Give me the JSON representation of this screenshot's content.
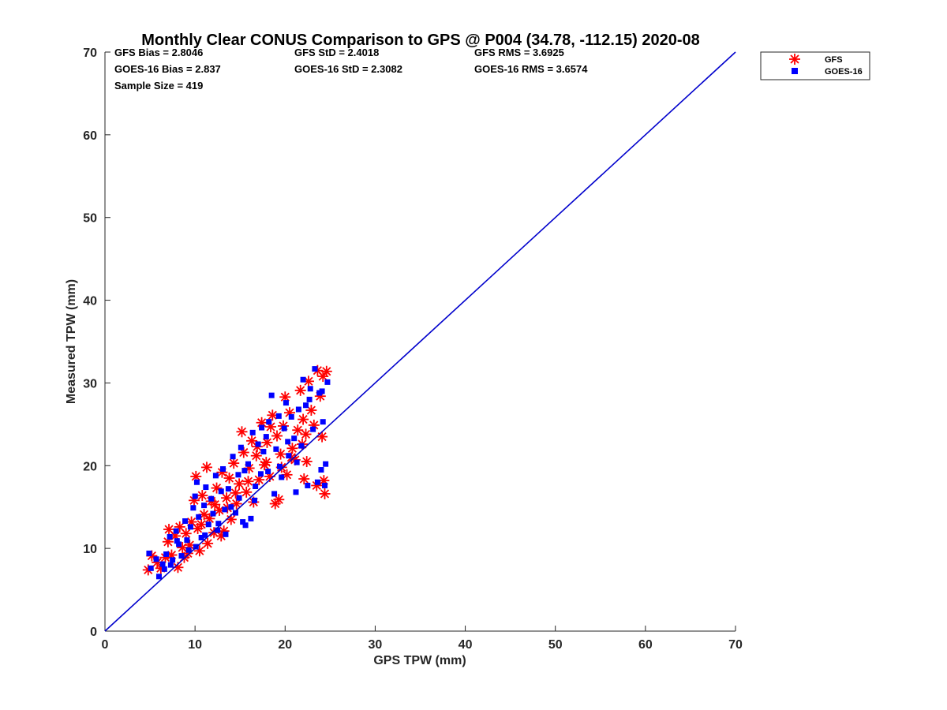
{
  "chart_data": {
    "type": "scatter",
    "title": "Monthly Clear CONUS Comparison to GPS @ P004 (34.78, -112.15) 2020-08",
    "xlabel": "GPS TPW (mm)",
    "ylabel": "Measured TPW (mm)",
    "xlim": [
      0,
      70
    ],
    "ylim": [
      0,
      70
    ],
    "xticks": [
      "0",
      "10",
      "20",
      "30",
      "40",
      "50",
      "60",
      "70"
    ],
    "yticks": [
      "0",
      "10",
      "20",
      "30",
      "40",
      "50",
      "60",
      "70"
    ],
    "grid": false,
    "legend_position": "top-right",
    "stats": [
      "GFS Bias = 2.8046",
      "GFS StD = 2.4018",
      "GFS RMS = 3.6925",
      "GOES-16 Bias = 2.837",
      "GOES-16 StD = 2.3082",
      "GOES-16 RMS = 3.6574",
      "Sample Size = 419"
    ],
    "reference_line": {
      "x": [
        0,
        70
      ],
      "y": [
        0,
        70
      ],
      "color": "#0000cc"
    },
    "series": [
      {
        "name": "GFS",
        "marker": "asterisk",
        "color": "#ff0000",
        "points": [
          [
            4.8,
            7.4
          ],
          [
            5.2,
            9.1
          ],
          [
            5.8,
            8.3
          ],
          [
            6.2,
            7.6
          ],
          [
            6.7,
            8.9
          ],
          [
            7.0,
            10.8
          ],
          [
            7.1,
            12.3
          ],
          [
            7.4,
            9.2
          ],
          [
            7.8,
            11.5
          ],
          [
            8.1,
            7.7
          ],
          [
            8.3,
            12.6
          ],
          [
            8.6,
            10.1
          ],
          [
            9.0,
            11.8
          ],
          [
            9.2,
            9.4
          ],
          [
            9.6,
            13.2
          ],
          [
            9.9,
            15.8
          ],
          [
            10.1,
            18.7
          ],
          [
            10.3,
            12.4
          ],
          [
            10.5,
            9.7
          ],
          [
            10.8,
            16.4
          ],
          [
            11.0,
            14.1
          ],
          [
            11.3,
            19.8
          ],
          [
            11.6,
            13.6
          ],
          [
            11.8,
            15.7
          ],
          [
            12.1,
            11.9
          ],
          [
            12.4,
            17.3
          ],
          [
            12.7,
            14.6
          ],
          [
            13.0,
            19.2
          ],
          [
            13.2,
            12.1
          ],
          [
            13.5,
            16.1
          ],
          [
            13.8,
            18.5
          ],
          [
            14.0,
            13.5
          ],
          [
            14.3,
            20.3
          ],
          [
            14.6,
            15.4
          ],
          [
            14.9,
            17.8
          ],
          [
            15.2,
            24.1
          ],
          [
            15.4,
            21.6
          ],
          [
            15.7,
            16.8
          ],
          [
            16.0,
            19.7
          ],
          [
            16.3,
            23.0
          ],
          [
            16.5,
            15.6
          ],
          [
            16.8,
            21.2
          ],
          [
            17.1,
            18.3
          ],
          [
            17.4,
            25.2
          ],
          [
            17.7,
            20.1
          ],
          [
            18.0,
            22.8
          ],
          [
            18.3,
            18.7
          ],
          [
            18.6,
            26.1
          ],
          [
            18.9,
            15.4
          ],
          [
            19.1,
            23.6
          ],
          [
            19.3,
            15.9
          ],
          [
            19.5,
            21.4
          ],
          [
            19.8,
            24.8
          ],
          [
            20.0,
            28.3
          ],
          [
            20.2,
            18.9
          ],
          [
            20.5,
            26.4
          ],
          [
            20.8,
            22.1
          ],
          [
            21.1,
            20.7
          ],
          [
            21.4,
            24.3
          ],
          [
            21.7,
            29.1
          ],
          [
            22.0,
            25.6
          ],
          [
            22.1,
            18.4
          ],
          [
            22.3,
            23.8
          ],
          [
            22.6,
            30.2
          ],
          [
            22.9,
            26.7
          ],
          [
            23.2,
            24.9
          ],
          [
            23.5,
            17.6
          ],
          [
            23.6,
            31.5
          ],
          [
            23.9,
            28.4
          ],
          [
            24.1,
            23.5
          ],
          [
            24.3,
            18.2
          ],
          [
            24.4,
            16.6
          ],
          [
            24.6,
            31.4
          ],
          [
            24.2,
            30.8
          ],
          [
            22.4,
            20.5
          ],
          [
            21.9,
            22.6
          ],
          [
            20.7,
            21.0
          ],
          [
            19.6,
            19.8
          ],
          [
            17.9,
            20.4
          ],
          [
            12.9,
            11.5
          ],
          [
            11.4,
            10.6
          ],
          [
            10.7,
            12.9
          ],
          [
            9.4,
            10.4
          ],
          [
            8.8,
            8.9
          ],
          [
            15.9,
            18.1
          ],
          [
            14.5,
            16.7
          ],
          [
            16.9,
            22.3
          ],
          [
            13.6,
            14.9
          ],
          [
            12.2,
            15.3
          ],
          [
            18.4,
            24.7
          ]
        ]
      },
      {
        "name": "GOES-16",
        "marker": "square",
        "color": "#0000ff",
        "points": [
          [
            4.9,
            9.4
          ],
          [
            5.1,
            7.6
          ],
          [
            5.7,
            8.7
          ],
          [
            6.0,
            6.6
          ],
          [
            6.4,
            8.1
          ],
          [
            6.8,
            9.3
          ],
          [
            7.2,
            11.4
          ],
          [
            7.5,
            8.6
          ],
          [
            7.9,
            12.1
          ],
          [
            8.2,
            10.5
          ],
          [
            8.5,
            9.1
          ],
          [
            8.9,
            13.3
          ],
          [
            9.1,
            11.0
          ],
          [
            9.5,
            12.6
          ],
          [
            9.8,
            14.9
          ],
          [
            10.0,
            16.3
          ],
          [
            10.2,
            18.0
          ],
          [
            10.4,
            13.8
          ],
          [
            10.7,
            11.3
          ],
          [
            11.0,
            15.2
          ],
          [
            11.2,
            17.4
          ],
          [
            11.5,
            12.9
          ],
          [
            11.8,
            16.0
          ],
          [
            12.0,
            14.2
          ],
          [
            12.3,
            18.8
          ],
          [
            12.6,
            13.0
          ],
          [
            12.9,
            16.9
          ],
          [
            13.1,
            19.6
          ],
          [
            13.4,
            11.7
          ],
          [
            13.7,
            17.2
          ],
          [
            14.0,
            15.0
          ],
          [
            14.2,
            21.1
          ],
          [
            14.5,
            14.3
          ],
          [
            14.8,
            18.9
          ],
          [
            15.1,
            22.2
          ],
          [
            15.3,
            13.2
          ],
          [
            15.6,
            12.8
          ],
          [
            15.9,
            20.2
          ],
          [
            16.2,
            13.6
          ],
          [
            16.4,
            24.0
          ],
          [
            16.7,
            17.5
          ],
          [
            17.0,
            22.6
          ],
          [
            17.3,
            19.0
          ],
          [
            17.6,
            21.7
          ],
          [
            17.9,
            23.5
          ],
          [
            18.2,
            25.3
          ],
          [
            18.5,
            28.5
          ],
          [
            18.8,
            16.6
          ],
          [
            19.0,
            22.0
          ],
          [
            19.3,
            26.0
          ],
          [
            19.6,
            18.6
          ],
          [
            19.9,
            24.5
          ],
          [
            20.1,
            27.6
          ],
          [
            20.4,
            21.2
          ],
          [
            20.7,
            25.9
          ],
          [
            21.0,
            23.3
          ],
          [
            21.2,
            16.8
          ],
          [
            21.5,
            26.8
          ],
          [
            21.8,
            22.4
          ],
          [
            22.0,
            30.4
          ],
          [
            22.3,
            27.3
          ],
          [
            22.5,
            17.6
          ],
          [
            22.8,
            29.3
          ],
          [
            23.1,
            24.4
          ],
          [
            23.3,
            31.7
          ],
          [
            23.6,
            18.0
          ],
          [
            23.8,
            28.8
          ],
          [
            24.0,
            19.5
          ],
          [
            24.2,
            25.3
          ],
          [
            24.4,
            17.6
          ],
          [
            24.5,
            20.2
          ],
          [
            24.7,
            30.1
          ],
          [
            24.1,
            29.0
          ],
          [
            22.7,
            28.0
          ],
          [
            21.3,
            20.4
          ],
          [
            20.3,
            22.9
          ],
          [
            19.4,
            19.9
          ],
          [
            18.1,
            19.3
          ],
          [
            16.6,
            15.8
          ],
          [
            14.9,
            16.1
          ],
          [
            13.3,
            14.7
          ],
          [
            12.5,
            12.2
          ],
          [
            11.1,
            11.6
          ],
          [
            10.1,
            10.2
          ],
          [
            9.3,
            9.8
          ],
          [
            8.0,
            10.9
          ],
          [
            7.3,
            8.0
          ],
          [
            6.6,
            7.5
          ],
          [
            17.4,
            24.6
          ],
          [
            15.5,
            19.4
          ]
        ]
      }
    ]
  },
  "colors": {
    "axis": "#262626",
    "gfs": "#ff0000",
    "goes": "#0000ff",
    "line": "#0000cc"
  }
}
